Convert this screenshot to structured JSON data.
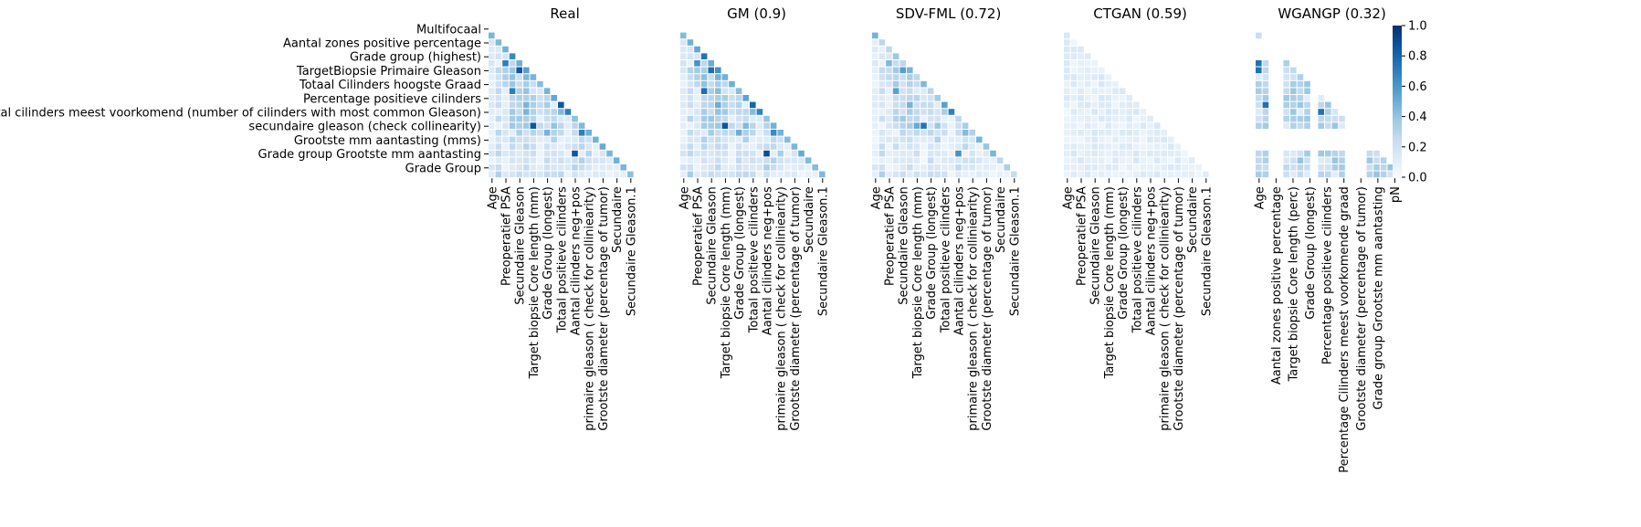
{
  "figure": {
    "colorbar": {
      "colormap": "Blues",
      "vmin": 0.0,
      "vmax": 1.0,
      "ticks": [
        0.0,
        0.2,
        0.4,
        0.6,
        0.8,
        1.0
      ],
      "tick_labels": [
        "0.0",
        "0.2",
        "0.4",
        "0.6",
        "0.8",
        "1.0"
      ],
      "colors": {
        "low": "#f7fbff",
        "mid": "#6baed6",
        "high": "#08306b"
      }
    },
    "y_tick_labels": [
      "Multifocaal",
      "Aantal zones positive percentage",
      "Grade group (highest)",
      "TargetBiopsie Primaire Gleason",
      "Totaal Cilinders hoogste Graad",
      "Percentage positieve cilinders",
      "Aantal cilinders meest voorkomend (number of cilinders with most common Gleason)",
      "secundaire gleason  (check collinearity)",
      "Grootste mm aantasting (mms)",
      "Grade group Grootste mm aantasting",
      "Grade Group"
    ]
  },
  "chart_data": [
    {
      "type": "heatmap",
      "title": "Real",
      "matrix_size": 22,
      "value_range": [
        0,
        1
      ],
      "variant": "real",
      "x_tick_labels": [
        "Age",
        "Preoperatief PSA",
        "Secundaire Gleason",
        "Target biopsie Core length (mm)",
        "Grade Group (longest)",
        "Totaal positieve cilinders",
        "Aantal cilinders neg+pos",
        "primaire gleason ( check for colliniearity)",
        "Grootste diameter (percentage of tumor)",
        "Secundaire",
        "Secundaire Gleason.1"
      ]
    },
    {
      "type": "heatmap",
      "title": "GM (0.9)",
      "matrix_size": 22,
      "value_range": [
        0,
        1
      ],
      "variant": "gm",
      "x_tick_labels": [
        "Age",
        "Preoperatief PSA",
        "Secundaire Gleason",
        "Target biopsie Core length (mm)",
        "Grade Group (longest)",
        "Totaal positieve cilinders",
        "Aantal cilinders neg+pos",
        "primaire gleason ( check for colliniearity)",
        "Grootste diameter (percentage of tumor)",
        "Secundaire",
        "Secundaire Gleason.1"
      ]
    },
    {
      "type": "heatmap",
      "title": "SDV-FML (0.72)",
      "matrix_size": 22,
      "value_range": [
        0,
        1
      ],
      "variant": "sdv",
      "x_tick_labels": [
        "Age",
        "Preoperatief PSA",
        "Secundaire Gleason",
        "Target biopsie Core length (mm)",
        "Grade Group (longest)",
        "Totaal positieve cilinders",
        "Aantal cilinders neg+pos",
        "primaire gleason ( check for colliniearity)",
        "Grootste diameter (percentage of tumor)",
        "Secundaire",
        "Secundaire Gleason.1"
      ]
    },
    {
      "type": "heatmap",
      "title": "CTGAN (0.59)",
      "matrix_size": 22,
      "value_range": [
        0,
        1
      ],
      "variant": "ctgan",
      "x_tick_labels": [
        "Age",
        "Preoperatief PSA",
        "Secundaire Gleason",
        "Target biopsie Core length (mm)",
        "Grade Group (longest)",
        "Totaal positieve cilinders",
        "Aantal cilinders neg+pos",
        "primaire gleason ( check for colliniearity)",
        "Grootste diameter (percentage of tumor)",
        "Secundaire",
        "Secundaire Gleason.1"
      ]
    },
    {
      "type": "heatmap",
      "title": "WGANGP (0.32)",
      "matrix_size": 22,
      "value_range": [
        0,
        1
      ],
      "variant": "wgan",
      "x_tick_labels": [
        "Age",
        "Aantal zones positive percentage",
        "Target biopsie Core length (perc)",
        "Grade Group (longest)",
        "Percentage positieve cilinders",
        "Percentage Cilinders meest voorkomende graad",
        "Grootste diameter (percentage of tumor)",
        "Grade group Grootste mm aantasting",
        "pN"
      ]
    }
  ]
}
